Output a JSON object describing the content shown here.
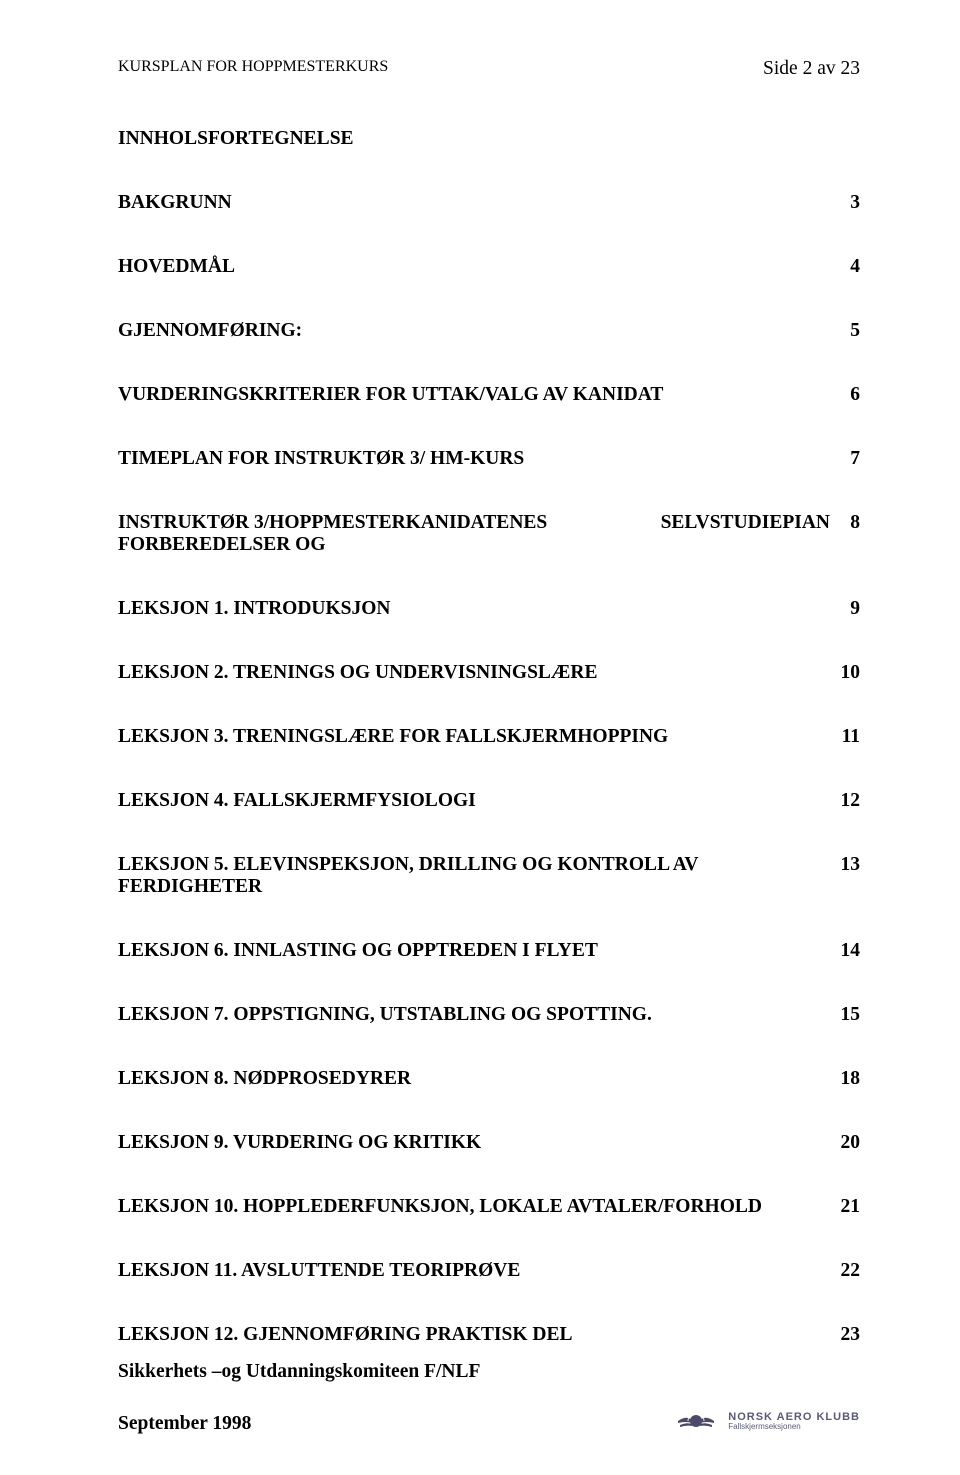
{
  "header": {
    "left": "KURSPLAN FOR HOPPMESTERKURS",
    "right": "Side 2 av 23"
  },
  "toc": {
    "title": "INNHOLSFORTEGNELSE",
    "entries": [
      {
        "label": "BAKGRUNN",
        "page": "3"
      },
      {
        "label": "HOVEDMÅL",
        "page": "4"
      },
      {
        "label": "GJENNOMFØRING:",
        "page": "5"
      },
      {
        "label": "VURDERINGSKRITERIER FOR UTTAK/VALG AV KANIDAT",
        "page": "6"
      },
      {
        "label": "TIMEPLAN FOR INSTRUKTØR 3/ HM-KURS",
        "page": "7"
      },
      {
        "label_line1": "INSTRUKTØR 3/HOPPMESTERKANIDATENES FORBEREDELSER OG",
        "label_line2": "SELVSTUDIEPIAN",
        "page": "8",
        "twoLine": true
      },
      {
        "label": "LEKSJON 1. INTRODUKSJON",
        "page": "9"
      },
      {
        "label": "LEKSJON 2. TRENINGS OG UNDERVISNINGSLÆRE",
        "page": "10"
      },
      {
        "label": "LEKSJON 3. TRENINGSLÆRE FOR FALLSKJERMHOPPING",
        "page": "11"
      },
      {
        "label": "LEKSJON 4. FALLSKJERMFYSIOLOGI",
        "page": "12"
      },
      {
        "label": "LEKSJON 5. ELEVINSPEKSJON, DRILLING OG KONTROLL AV FERDIGHETER",
        "page": "13"
      },
      {
        "label": "LEKSJON 6. INNLASTING OG OPPTREDEN I FLYET",
        "page": "14"
      },
      {
        "label": "LEKSJON 7. OPPSTIGNING, UTSTABLING OG SPOTTING.",
        "page": "15"
      },
      {
        "label": "LEKSJON 8. NØDPROSEDYRER",
        "page": "18"
      },
      {
        "label": "LEKSJON 9. VURDERING OG KRITIKK",
        "page": "20"
      },
      {
        "label": "LEKSJON 10. HOPPLEDERFUNKSJON, LOKALE AVTALER/FORHOLD",
        "page": "21"
      },
      {
        "label": "LEKSJON 11. AVSLUTTENDE TEORIPRØVE",
        "page": "22"
      },
      {
        "label": "LEKSJON 12. GJENNOMFØRING PRAKTISK DEL",
        "page": "23"
      }
    ]
  },
  "footer": {
    "line1": "Sikkerhets –og Utdanningskomiteen F/NLF",
    "line2": "September 1998",
    "logo_top": "NORSK AERO KLUBB",
    "logo_bottom": "Fallskjermseksjonen"
  },
  "style": {
    "page_bg": "#ffffff",
    "text_color": "#000000",
    "body_fontsize_pt": 14,
    "header_left_fontsize_pt": 12,
    "font_family": "Times New Roman"
  }
}
